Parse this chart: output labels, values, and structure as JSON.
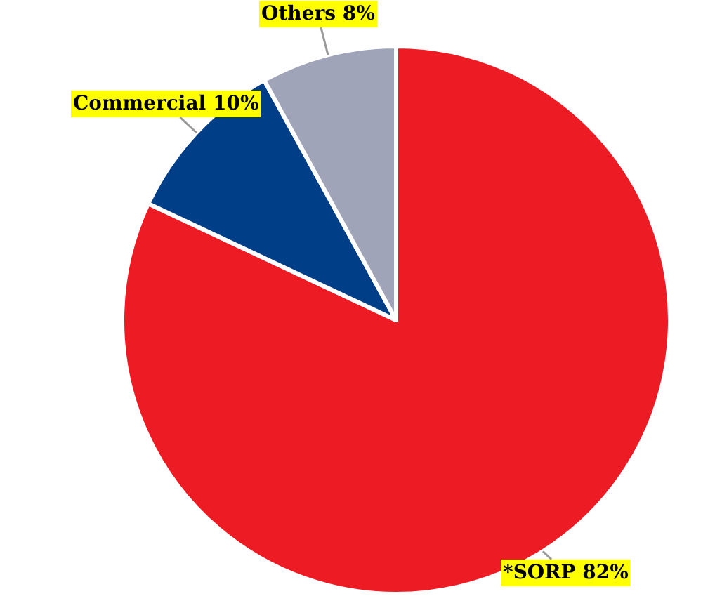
{
  "chart_data": {
    "type": "pie",
    "categories": [
      "*SORP",
      "Commercial",
      "Others"
    ],
    "values": [
      82,
      10,
      8
    ],
    "value_labels": [
      "82%",
      "10%",
      "8%"
    ],
    "colors": [
      "#ed1c24",
      "#003f87",
      "#a0a4b8"
    ],
    "legend": false
  }
}
